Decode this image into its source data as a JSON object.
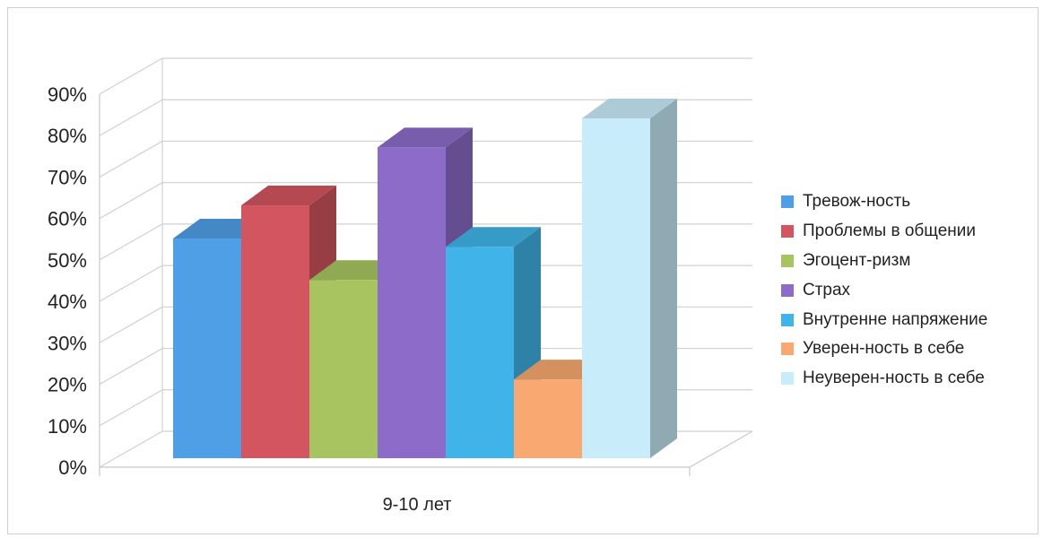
{
  "chart_data": {
    "type": "bar",
    "categories": [
      "9-10 лет"
    ],
    "series": [
      {
        "name": "Тревож-ность",
        "values": [
          53
        ],
        "color": "#4f9fe6"
      },
      {
        "name": "Проблемы в общении",
        "values": [
          61
        ],
        "color": "#d2555f"
      },
      {
        "name": "Эгоцент-ризм",
        "values": [
          43
        ],
        "color": "#a8c460"
      },
      {
        "name": "Страх",
        "values": [
          75
        ],
        "color": "#8c6cc8"
      },
      {
        "name": "Внутренне напряжение",
        "values": [
          51
        ],
        "color": "#40b4e8"
      },
      {
        "name": "Уверен-ность в себе",
        "values": [
          19
        ],
        "color": "#f8a870"
      },
      {
        "name": "Неуверен-ность в себе",
        "values": [
          82
        ],
        "color": "#c8ecfa"
      }
    ],
    "yticks": [
      "0%",
      "10%",
      "20%",
      "30%",
      "40%",
      "50%",
      "60%",
      "70%",
      "80%",
      "90%"
    ],
    "ylim": [
      0,
      90
    ],
    "grid": true,
    "legend_position": "right",
    "style": "3d-column"
  }
}
